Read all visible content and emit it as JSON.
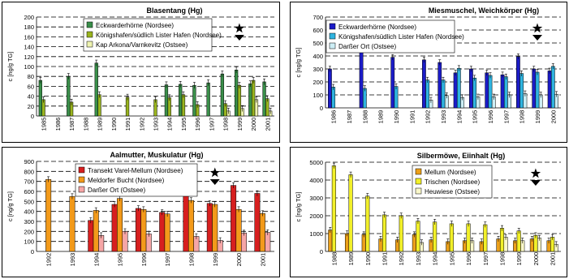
{
  "chart_data": [
    {
      "type": "bar",
      "title": "Blasentang (Hg)",
      "ylabel": "c [ng/g TG]",
      "ylim": [
        0,
        200
      ],
      "yticks": [
        0,
        20,
        40,
        60,
        80,
        100,
        120,
        140,
        160,
        180,
        200
      ],
      "categories": [
        "1985",
        "1986",
        "1987",
        "1988",
        "1989",
        "1990",
        "1991",
        "1992",
        "1993",
        "1994",
        "1995",
        "1996",
        "1997",
        "1998",
        "1999",
        "2000",
        "2001"
      ],
      "marker_category": "1999",
      "series": [
        {
          "name": "Eckwarderhörne (Nordsee)",
          "color": "#3a8f4a",
          "values": [
            72,
            null,
            80,
            null,
            107,
            null,
            null,
            null,
            null,
            63,
            64,
            62,
            67,
            85,
            93,
            65,
            69
          ]
        },
        {
          "name": "Königshafen/südlich Lister Hafen (Nordsee)",
          "color": "#99b41e",
          "values": [
            33,
            null,
            28,
            null,
            43,
            null,
            38,
            null,
            33,
            37,
            43,
            23,
            null,
            25,
            62,
            72,
            35
          ]
        },
        {
          "name": "Kap Arkona/Varnkevitz (Ostsee)",
          "color": "#eef3b0",
          "values": [
            null,
            null,
            null,
            null,
            null,
            null,
            null,
            null,
            null,
            null,
            null,
            null,
            null,
            10,
            15,
            33,
            10
          ]
        }
      ]
    },
    {
      "type": "bar",
      "title": "Miesmuschel, Weichkörper (Hg)",
      "ylabel": "c [ng/g TG]",
      "ylim": [
        0,
        700
      ],
      "yticks": [
        0,
        100,
        200,
        300,
        400,
        500,
        600,
        700
      ],
      "categories": [
        "1986",
        "1987",
        "1988",
        "1989",
        "1990",
        "1991",
        "1992",
        "1993",
        "1994",
        "1995",
        "1996",
        "1997",
        "1998",
        "1999",
        "2000"
      ],
      "marker_category": "1999",
      "series": [
        {
          "name": "Eckwarderhörne (Nordsee)",
          "color": "#1c1cc8",
          "values": [
            300,
            null,
            450,
            null,
            390,
            null,
            370,
            350,
            270,
            300,
            270,
            255,
            395,
            300,
            285
          ]
        },
        {
          "name": "Königshafen/südlich Lister Hafen (Nordsee)",
          "color": "#2fb4e0",
          "values": [
            160,
            null,
            150,
            null,
            165,
            null,
            215,
            215,
            305,
            230,
            250,
            240,
            265,
            275,
            320
          ]
        },
        {
          "name": "Darßer Ort (Ostsee)",
          "color": "#cdeef5",
          "values": [
            null,
            null,
            null,
            null,
            null,
            null,
            60,
            95,
            80,
            85,
            85,
            100,
            110,
            100,
            105
          ]
        }
      ]
    },
    {
      "type": "bar",
      "title": "Aalmutter, Muskulatur (Hg)",
      "ylabel": "c [ng/g TG]",
      "ylim": [
        0,
        900
      ],
      "yticks": [
        0,
        100,
        200,
        300,
        400,
        500,
        600,
        700,
        800,
        900
      ],
      "categories": [
        "1992",
        "1993",
        "1994",
        "1995",
        "1996",
        "1997",
        "1998",
        "1999",
        "2000",
        "2001"
      ],
      "marker_category": "1999",
      "series": [
        {
          "name": "Transekt Varel-Mellum (Nordsee)",
          "color": "#d71f1f",
          "values": [
            null,
            null,
            310,
            470,
            430,
            390,
            590,
            480,
            660,
            580
          ]
        },
        {
          "name": "Meldorfer Bucht (Nordsee)",
          "color": "#f39a1a",
          "values": [
            720,
            550,
            410,
            530,
            420,
            375,
            510,
            470,
            420,
            380
          ]
        },
        {
          "name": "Darßer Ort (Ostsee)",
          "color": "#f6a6a6",
          "values": [
            null,
            null,
            160,
            200,
            175,
            null,
            150,
            110,
            185,
            190
          ]
        }
      ]
    },
    {
      "type": "bar",
      "title": "Silbermöwe, Eiinhalt (Hg)",
      "ylabel": "c [ng/g TG]",
      "ylim": [
        0,
        5000
      ],
      "yticks": [
        0,
        1000,
        2000,
        3000,
        4000,
        5000
      ],
      "categories": [
        "1988",
        "1989",
        "1990",
        "1991",
        "1992",
        "1993",
        "1994",
        "1995",
        "1996",
        "1997",
        "1998",
        "1999",
        "2000",
        "2001"
      ],
      "marker_category": "2000",
      "series": [
        {
          "name": "Mellum (Nordsee)",
          "color": "#eca01a",
          "values": [
            1200,
            1000,
            950,
            700,
            650,
            950,
            650,
            550,
            600,
            550,
            700,
            600,
            700,
            600
          ]
        },
        {
          "name": "Trischen (Nordsee)",
          "color": "#f2f029",
          "values": [
            4800,
            4300,
            3100,
            2050,
            2000,
            1700,
            1650,
            1550,
            1550,
            1500,
            1300,
            1150,
            900,
            800
          ]
        },
        {
          "name": "Heuwiese (Ostsee)",
          "color": "#f9f7c9",
          "values": [
            null,
            null,
            null,
            null,
            null,
            500,
            null,
            null,
            600,
            null,
            800,
            600,
            750,
            400
          ]
        }
      ]
    }
  ]
}
